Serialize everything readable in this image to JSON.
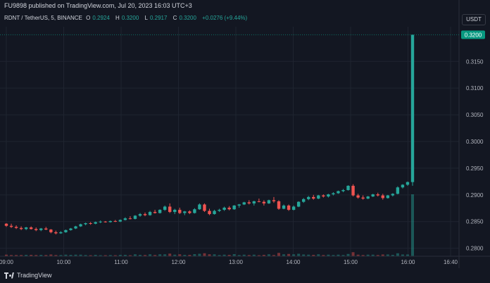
{
  "publisher_line": "FU9898 published on TradingView.com, Jul 20, 2023 16:03 UTC+3",
  "legend": {
    "symbol": "RDNT / TetherUS, 5, BINANCE",
    "o_label": "O",
    "o_value": "0.2924",
    "h_label": "H",
    "h_value": "0.3200",
    "l_label": "L",
    "l_value": "0.2917",
    "c_label": "C",
    "c_value": "0.3200",
    "change": "+0.0276 (+9.44%)"
  },
  "currency_button": "USDT",
  "brand": "TradingView",
  "colors": {
    "up": "#26a69a",
    "down": "#ef5350",
    "bg": "#131722",
    "grid": "#1f2430",
    "price_tag": "#089981"
  },
  "chart_data": {
    "type": "candlestick",
    "x_ticks": [
      "09:00",
      "10:00",
      "11:00",
      "12:00",
      "13:00",
      "14:00",
      "15:00",
      "16:00",
      "16:40"
    ],
    "y_ticks": [
      "0.3150",
      "0.3100",
      "0.3050",
      "0.3000",
      "0.2950",
      "0.2900",
      "0.2850",
      "0.2800"
    ],
    "last_price_label": "0.3200",
    "ylim": [
      0.2785,
      0.3215
    ],
    "candles": [
      [
        0.2846,
        0.2847,
        0.284,
        0.2842
      ],
      [
        0.2842,
        0.2846,
        0.2838,
        0.284
      ],
      [
        0.284,
        0.2843,
        0.2836,
        0.2838
      ],
      [
        0.2838,
        0.2841,
        0.2834,
        0.2836
      ],
      [
        0.2836,
        0.284,
        0.2834,
        0.2839
      ],
      [
        0.2839,
        0.2841,
        0.2835,
        0.2836
      ],
      [
        0.2836,
        0.2839,
        0.2832,
        0.2834
      ],
      [
        0.2834,
        0.2838,
        0.2832,
        0.2837
      ],
      [
        0.2837,
        0.284,
        0.2834,
        0.2835
      ],
      [
        0.2835,
        0.2836,
        0.2828,
        0.283
      ],
      [
        0.283,
        0.2833,
        0.2826,
        0.2828
      ],
      [
        0.2828,
        0.2832,
        0.2827,
        0.283
      ],
      [
        0.283,
        0.2835,
        0.2829,
        0.2834
      ],
      [
        0.2834,
        0.2838,
        0.2833,
        0.2837
      ],
      [
        0.2837,
        0.2842,
        0.2836,
        0.2841
      ],
      [
        0.2841,
        0.2846,
        0.284,
        0.2845
      ],
      [
        0.2845,
        0.2848,
        0.2843,
        0.2847
      ],
      [
        0.2847,
        0.2849,
        0.2844,
        0.2846
      ],
      [
        0.2846,
        0.285,
        0.2845,
        0.2849
      ],
      [
        0.2849,
        0.2852,
        0.2847,
        0.285
      ],
      [
        0.285,
        0.2851,
        0.2848,
        0.2849
      ],
      [
        0.2849,
        0.2852,
        0.2848,
        0.2851
      ],
      [
        0.2851,
        0.2853,
        0.2849,
        0.285
      ],
      [
        0.285,
        0.2854,
        0.2849,
        0.2853
      ],
      [
        0.2853,
        0.2858,
        0.2852,
        0.2856
      ],
      [
        0.2856,
        0.286,
        0.2854,
        0.2855
      ],
      [
        0.2855,
        0.2862,
        0.2854,
        0.2861
      ],
      [
        0.2861,
        0.2866,
        0.2859,
        0.2864
      ],
      [
        0.2864,
        0.2867,
        0.286,
        0.2862
      ],
      [
        0.2862,
        0.287,
        0.2861,
        0.2868
      ],
      [
        0.2868,
        0.2872,
        0.2865,
        0.2866
      ],
      [
        0.2866,
        0.2873,
        0.2865,
        0.2872
      ],
      [
        0.2872,
        0.288,
        0.287,
        0.2878
      ],
      [
        0.2878,
        0.2884,
        0.2866,
        0.2868
      ],
      [
        0.2868,
        0.2874,
        0.2864,
        0.2872
      ],
      [
        0.2872,
        0.2876,
        0.2864,
        0.2866
      ],
      [
        0.2866,
        0.287,
        0.2862,
        0.2869
      ],
      [
        0.2869,
        0.2871,
        0.2864,
        0.2866
      ],
      [
        0.2866,
        0.2875,
        0.2865,
        0.2873
      ],
      [
        0.2873,
        0.2884,
        0.2872,
        0.2882
      ],
      [
        0.2882,
        0.2884,
        0.2868,
        0.287
      ],
      [
        0.287,
        0.2874,
        0.2862,
        0.2864
      ],
      [
        0.2864,
        0.2872,
        0.2863,
        0.287
      ],
      [
        0.287,
        0.2874,
        0.2868,
        0.2872
      ],
      [
        0.2872,
        0.2878,
        0.287,
        0.2876
      ],
      [
        0.2876,
        0.2879,
        0.2871,
        0.2873
      ],
      [
        0.2873,
        0.2881,
        0.2872,
        0.288
      ],
      [
        0.288,
        0.2883,
        0.2876,
        0.2882
      ],
      [
        0.2882,
        0.2887,
        0.2881,
        0.2886
      ],
      [
        0.2886,
        0.289,
        0.2882,
        0.2884
      ],
      [
        0.2884,
        0.2889,
        0.288,
        0.2888
      ],
      [
        0.2888,
        0.2893,
        0.2886,
        0.2887
      ],
      [
        0.2887,
        0.289,
        0.288,
        0.2884
      ],
      [
        0.2884,
        0.2891,
        0.2883,
        0.289
      ],
      [
        0.289,
        0.2896,
        0.2885,
        0.2888
      ],
      [
        0.2888,
        0.289,
        0.2872,
        0.2874
      ],
      [
        0.2874,
        0.2882,
        0.2873,
        0.288
      ],
      [
        0.288,
        0.2882,
        0.287,
        0.2872
      ],
      [
        0.2872,
        0.288,
        0.2871,
        0.2878
      ],
      [
        0.2878,
        0.2888,
        0.2877,
        0.2887
      ],
      [
        0.2887,
        0.2894,
        0.2885,
        0.2892
      ],
      [
        0.2892,
        0.2898,
        0.289,
        0.2896
      ],
      [
        0.2896,
        0.29,
        0.2891,
        0.2893
      ],
      [
        0.2893,
        0.29,
        0.2892,
        0.2899
      ],
      [
        0.2899,
        0.2901,
        0.2895,
        0.2897
      ],
      [
        0.2897,
        0.2902,
        0.2895,
        0.2901
      ],
      [
        0.2901,
        0.2905,
        0.2899,
        0.2903
      ],
      [
        0.2903,
        0.2908,
        0.2902,
        0.2907
      ],
      [
        0.2907,
        0.2911,
        0.2905,
        0.2909
      ],
      [
        0.2909,
        0.2918,
        0.2908,
        0.2917
      ],
      [
        0.2917,
        0.292,
        0.2897,
        0.2899
      ],
      [
        0.2899,
        0.2902,
        0.2893,
        0.2895
      ],
      [
        0.2895,
        0.2899,
        0.2891,
        0.2893
      ],
      [
        0.2893,
        0.2898,
        0.2892,
        0.2897
      ],
      [
        0.2897,
        0.2902,
        0.2896,
        0.2901
      ],
      [
        0.2901,
        0.2904,
        0.2897,
        0.2899
      ],
      [
        0.2899,
        0.2902,
        0.2891,
        0.2894
      ],
      [
        0.2894,
        0.29,
        0.2893,
        0.2899
      ],
      [
        0.2899,
        0.2903,
        0.2897,
        0.2902
      ],
      [
        0.2902,
        0.2916,
        0.2901,
        0.2914
      ],
      [
        0.2914,
        0.292,
        0.2912,
        0.2919
      ],
      [
        0.2919,
        0.2925,
        0.2917,
        0.2924
      ],
      [
        0.2924,
        0.32,
        0.2917,
        0.32
      ]
    ]
  }
}
